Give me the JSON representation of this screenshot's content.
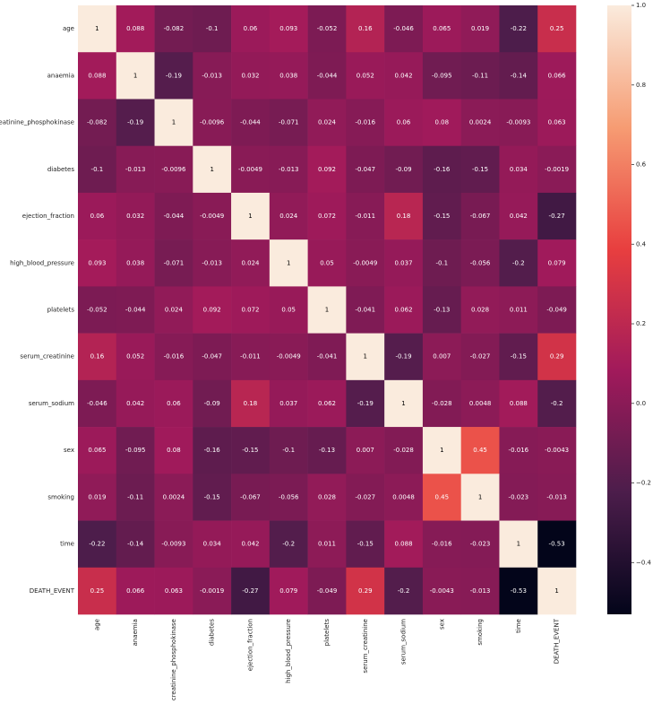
{
  "chart_data": {
    "type": "heatmap",
    "categories": [
      "age",
      "anaemia",
      "creatinine_phosphokinase",
      "diabetes",
      "ejection_fraction",
      "high_blood_pressure",
      "platelets",
      "serum_creatinine",
      "serum_sodium",
      "sex",
      "smoking",
      "time",
      "DEATH_EVENT"
    ],
    "values": [
      [
        1,
        0.088,
        -0.082,
        -0.1,
        0.06,
        0.093,
        -0.052,
        0.16,
        -0.046,
        0.065,
        0.019,
        -0.22,
        0.25
      ],
      [
        0.088,
        1,
        -0.19,
        -0.013,
        0.032,
        0.038,
        -0.044,
        0.052,
        0.042,
        -0.095,
        -0.11,
        -0.14,
        0.066
      ],
      [
        -0.082,
        -0.19,
        1,
        -0.0096,
        -0.044,
        -0.071,
        0.024,
        -0.016,
        0.06,
        0.08,
        0.0024,
        -0.0093,
        0.063
      ],
      [
        -0.1,
        -0.013,
        -0.0096,
        1,
        -0.0049,
        -0.013,
        0.092,
        -0.047,
        -0.09,
        -0.16,
        -0.15,
        0.034,
        -0.0019
      ],
      [
        0.06,
        0.032,
        -0.044,
        -0.0049,
        1,
        0.024,
        0.072,
        -0.011,
        0.18,
        -0.15,
        -0.067,
        0.042,
        -0.27
      ],
      [
        0.093,
        0.038,
        -0.071,
        -0.013,
        0.024,
        1,
        0.05,
        -0.0049,
        0.037,
        -0.1,
        -0.056,
        -0.2,
        0.079
      ],
      [
        -0.052,
        -0.044,
        0.024,
        0.092,
        0.072,
        0.05,
        1,
        -0.041,
        0.062,
        -0.13,
        0.028,
        0.011,
        -0.049
      ],
      [
        0.16,
        0.052,
        -0.016,
        -0.047,
        -0.011,
        -0.0049,
        -0.041,
        1,
        -0.19,
        0.007,
        -0.027,
        -0.15,
        0.29
      ],
      [
        -0.046,
        0.042,
        0.06,
        -0.09,
        0.18,
        0.037,
        0.062,
        -0.19,
        1,
        -0.028,
        0.0048,
        0.088,
        -0.2
      ],
      [
        0.065,
        -0.095,
        0.08,
        -0.16,
        -0.15,
        -0.1,
        -0.13,
        0.007,
        -0.028,
        1,
        0.45,
        -0.016,
        -0.0043
      ],
      [
        0.019,
        -0.11,
        0.0024,
        -0.15,
        -0.067,
        -0.056,
        0.028,
        -0.027,
        0.0048,
        0.45,
        1,
        -0.023,
        -0.013
      ],
      [
        -0.22,
        -0.14,
        -0.0093,
        0.034,
        0.042,
        -0.2,
        0.011,
        -0.15,
        0.088,
        -0.016,
        -0.023,
        1,
        -0.53
      ],
      [
        0.25,
        0.066,
        0.063,
        -0.0019,
        -0.27,
        0.079,
        -0.049,
        0.29,
        -0.2,
        -0.0043,
        -0.013,
        -0.53,
        1
      ]
    ],
    "zlim": [
      -0.53,
      1
    ],
    "zticks": [
      {
        "value": 1,
        "label": "1.0"
      },
      0.8,
      0.6,
      0.4,
      0.2,
      {
        "value": 0,
        "label": "0.0"
      },
      {
        "value": -0.2,
        "label": "−0.2"
      },
      {
        "value": -0.4,
        "label": "−0.4"
      }
    ],
    "colormap": [
      "#03051a",
      "#4c1d4b",
      "#a11a5b",
      "#e83f3f",
      "#f69c73",
      "#faebdd"
    ]
  }
}
